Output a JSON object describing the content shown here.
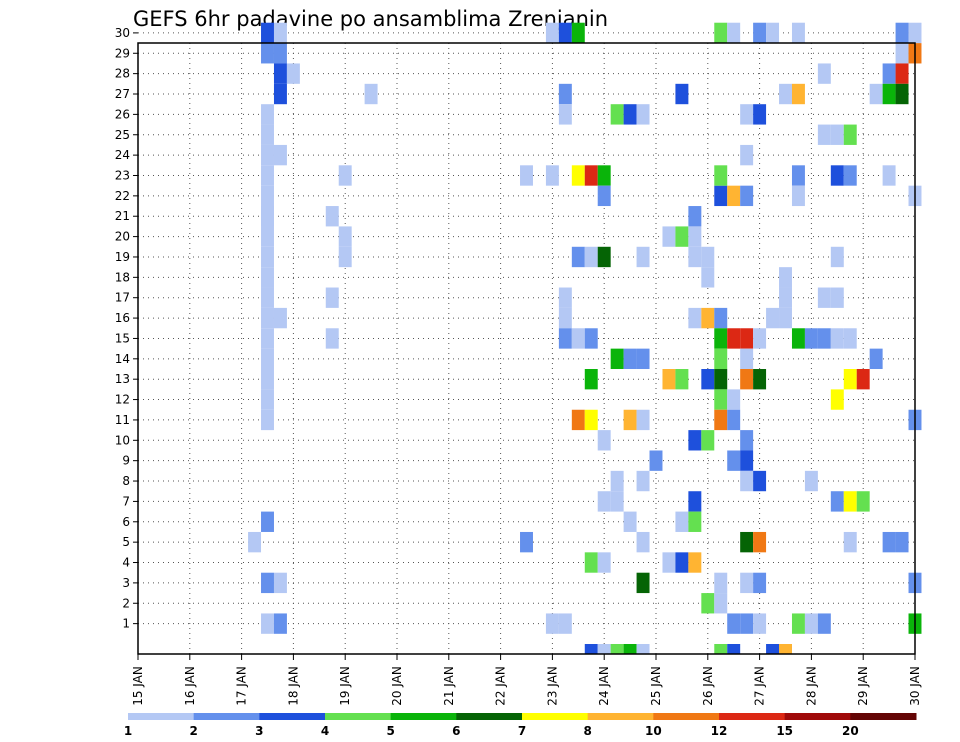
{
  "chart_data": {
    "type": "heatmap",
    "title": "GEFS 6hr padavine po ansamblima Zrenjanin",
    "x_tick_labels": [
      "15 JAN",
      "16 JAN",
      "17 JAN",
      "18 JAN",
      "19 JAN",
      "20 JAN",
      "21 JAN",
      "22 JAN",
      "23 JAN",
      "24 JAN",
      "25 JAN",
      "26 JAN",
      "27 JAN",
      "28 JAN",
      "29 JAN",
      "30 JAN"
    ],
    "y_tick_labels": [
      "1",
      "2",
      "3",
      "4",
      "5",
      "6",
      "7",
      "8",
      "9",
      "10",
      "11",
      "12",
      "13",
      "14",
      "15",
      "16",
      "17",
      "18",
      "19",
      "20",
      "21",
      "22",
      "23",
      "24",
      "25",
      "26",
      "27",
      "28",
      "29",
      "30"
    ],
    "x_range_days": [
      15,
      30
    ],
    "time_step_hours": 6,
    "ylim": [
      1,
      30
    ],
    "grid": "dotted",
    "legend_position": "bottom",
    "legend_labels": [
      "1",
      "2",
      "3",
      "4",
      "5",
      "6",
      "7",
      "8",
      "10",
      "12",
      "15",
      "20"
    ],
    "legend_colors": [
      "#b4c8f4",
      "#6490ec",
      "#1e50dc",
      "#64e050",
      "#0ab40a",
      "#056405",
      "#ffff00",
      "#ffb432",
      "#f07814",
      "#dc2814",
      "#a00a0a",
      "#640505"
    ],
    "cells_format": "[member, day_of_january, category_index]",
    "cells": [
      [
        30,
        17.5,
        2
      ],
      [
        30,
        17.75,
        0
      ],
      [
        29,
        17.5,
        1
      ],
      [
        29,
        17.75,
        1
      ],
      [
        28,
        17.75,
        2
      ],
      [
        28,
        18.0,
        0
      ],
      [
        27,
        17.75,
        2
      ],
      [
        26,
        17.5,
        0
      ],
      [
        25,
        17.5,
        0
      ],
      [
        24,
        17.5,
        0
      ],
      [
        24,
        17.75,
        0
      ],
      [
        23,
        17.5,
        0
      ],
      [
        22,
        17.5,
        0
      ],
      [
        21,
        17.5,
        0
      ],
      [
        20,
        17.5,
        0
      ],
      [
        19,
        17.5,
        0
      ],
      [
        18,
        17.5,
        0
      ],
      [
        17,
        17.5,
        0
      ],
      [
        16,
        17.5,
        0
      ],
      [
        15,
        17.5,
        0
      ],
      [
        14,
        17.5,
        0
      ],
      [
        13,
        17.5,
        0
      ],
      [
        12,
        17.5,
        0
      ],
      [
        11,
        17.5,
        0
      ],
      [
        21,
        17.5,
        0
      ],
      [
        16,
        17.75,
        0
      ],
      [
        6,
        17.5,
        1
      ],
      [
        5,
        17.25,
        0
      ],
      [
        3,
        17.5,
        1
      ],
      [
        3,
        17.75,
        0
      ],
      [
        1,
        17.5,
        0
      ],
      [
        1,
        17.75,
        1
      ],
      [
        27,
        19.5,
        0
      ],
      [
        23,
        19.0,
        0
      ],
      [
        20,
        19.0,
        0
      ],
      [
        19,
        19.0,
        0
      ],
      [
        17,
        18.75,
        0
      ],
      [
        15,
        18.75,
        0
      ],
      [
        21,
        18.75,
        0
      ],
      [
        30,
        23.0,
        0
      ],
      [
        30,
        23.25,
        2
      ],
      [
        30,
        23.5,
        4
      ],
      [
        27,
        23.25,
        1
      ],
      [
        26,
        23.25,
        0
      ],
      [
        23,
        22.5,
        0
      ],
      [
        23,
        23.0,
        0
      ],
      [
        23,
        23.5,
        6
      ],
      [
        23,
        23.75,
        9
      ],
      [
        23,
        24.0,
        4
      ],
      [
        22,
        24.0,
        1
      ],
      [
        19,
        23.5,
        1
      ],
      [
        19,
        23.75,
        0
      ],
      [
        19,
        24.0,
        5
      ],
      [
        17,
        23.25,
        0
      ],
      [
        16,
        23.25,
        0
      ],
      [
        15,
        23.25,
        1
      ],
      [
        15,
        23.5,
        0
      ],
      [
        15,
        23.75,
        1
      ],
      [
        14,
        24.25,
        4
      ],
      [
        14,
        24.5,
        1
      ],
      [
        14,
        24.75,
        1
      ],
      [
        13,
        23.75,
        4
      ],
      [
        11,
        23.5,
        8
      ],
      [
        11,
        23.75,
        6
      ],
      [
        11,
        24.5,
        7
      ],
      [
        11,
        24.75,
        0
      ],
      [
        10,
        24.0,
        0
      ],
      [
        8,
        24.25,
        0
      ],
      [
        8,
        24.75,
        0
      ],
      [
        7,
        24.0,
        0
      ],
      [
        7,
        24.25,
        0
      ],
      [
        6,
        24.5,
        0
      ],
      [
        5,
        22.5,
        1
      ],
      [
        5,
        24.75,
        0
      ],
      [
        4,
        23.75,
        3
      ],
      [
        4,
        24.0,
        0
      ],
      [
        3,
        24.75,
        5
      ],
      [
        1,
        23.0,
        0
      ],
      [
        1,
        23.25,
        0
      ],
      [
        0,
        23.75,
        2
      ],
      [
        0,
        24.0,
        0
      ],
      [
        0,
        24.25,
        3
      ],
      [
        0,
        24.5,
        4
      ],
      [
        0,
        24.75,
        0
      ],
      [
        26,
        24.25,
        3
      ],
      [
        26,
        24.5,
        2
      ],
      [
        26,
        24.75,
        0
      ],
      [
        19,
        24.75,
        0
      ],
      [
        9,
        25.0,
        1
      ],
      [
        27,
        25.5,
        2
      ],
      [
        22,
        26.25,
        2
      ],
      [
        22,
        26.5,
        7
      ],
      [
        22,
        26.75,
        1
      ],
      [
        21,
        25.75,
        1
      ],
      [
        20,
        25.25,
        0
      ],
      [
        20,
        25.5,
        3
      ],
      [
        20,
        25.75,
        0
      ],
      [
        19,
        25.75,
        0
      ],
      [
        19,
        26.0,
        0
      ],
      [
        18,
        26.0,
        0
      ],
      [
        16,
        25.75,
        0
      ],
      [
        16,
        26.0,
        7
      ],
      [
        16,
        26.25,
        1
      ],
      [
        15,
        26.25,
        4
      ],
      [
        15,
        26.5,
        9
      ],
      [
        15,
        26.75,
        9
      ],
      [
        15,
        27.0,
        0
      ],
      [
        14,
        26.25,
        3
      ],
      [
        14,
        26.75,
        0
      ],
      [
        13,
        25.25,
        7
      ],
      [
        13,
        25.5,
        3
      ],
      [
        13,
        26.0,
        2
      ],
      [
        13,
        26.25,
        5
      ],
      [
        13,
        26.75,
        8
      ],
      [
        13,
        27.0,
        5
      ],
      [
        12,
        26.25,
        3
      ],
      [
        12,
        26.5,
        0
      ],
      [
        11,
        26.25,
        8
      ],
      [
        11,
        26.5,
        1
      ],
      [
        10,
        25.75,
        2
      ],
      [
        10,
        26.0,
        3
      ],
      [
        10,
        26.75,
        1
      ],
      [
        9,
        26.5,
        1
      ],
      [
        9,
        26.75,
        2
      ],
      [
        8,
        26.75,
        0
      ],
      [
        8,
        27.0,
        2
      ],
      [
        7,
        25.75,
        2
      ],
      [
        6,
        25.5,
        0
      ],
      [
        6,
        25.75,
        3
      ],
      [
        5,
        26.75,
        5
      ],
      [
        5,
        27.0,
        8
      ],
      [
        4,
        25.25,
        0
      ],
      [
        4,
        25.5,
        2
      ],
      [
        4,
        25.75,
        7
      ],
      [
        3,
        26.25,
        0
      ],
      [
        3,
        26.75,
        0
      ],
      [
        3,
        27.0,
        1
      ],
      [
        2,
        26.0,
        3
      ],
      [
        2,
        26.25,
        0
      ],
      [
        1,
        26.5,
        1
      ],
      [
        1,
        26.75,
        1
      ],
      [
        1,
        27.0,
        0
      ],
      [
        0,
        26.25,
        3
      ],
      [
        0,
        26.5,
        2
      ],
      [
        26,
        26.75,
        0
      ],
      [
        26,
        27.0,
        2
      ],
      [
        24,
        26.75,
        0
      ],
      [
        23,
        26.25,
        3
      ],
      [
        30,
        26.25,
        3
      ],
      [
        30,
        26.5,
        0
      ],
      [
        30,
        27.0,
        1
      ],
      [
        30,
        27.25,
        0
      ],
      [
        30,
        27.75,
        0
      ],
      [
        28,
        28.25,
        0
      ],
      [
        27,
        27.5,
        0
      ],
      [
        27,
        27.75,
        7
      ],
      [
        23,
        27.75,
        1
      ],
      [
        22,
        27.75,
        0
      ],
      [
        18,
        27.5,
        0
      ],
      [
        17,
        27.5,
        0
      ],
      [
        17,
        28.25,
        0
      ],
      [
        17,
        28.5,
        0
      ],
      [
        16,
        27.25,
        0
      ],
      [
        16,
        27.5,
        0
      ],
      [
        15,
        27.75,
        4
      ],
      [
        15,
        28.0,
        1
      ],
      [
        15,
        28.25,
        1
      ],
      [
        15,
        28.5,
        0
      ],
      [
        15,
        28.75,
        0
      ],
      [
        8,
        28.0,
        0
      ],
      [
        7,
        28.5,
        1
      ],
      [
        7,
        28.75,
        6
      ],
      [
        7,
        29.0,
        3
      ],
      [
        5,
        28.75,
        0
      ],
      [
        1,
        27.75,
        3
      ],
      [
        1,
        28.0,
        0
      ],
      [
        1,
        28.25,
        1
      ],
      [
        0,
        27.25,
        2
      ],
      [
        0,
        27.5,
        2
      ],
      [
        0,
        27.5,
        7
      ],
      [
        25,
        28.25,
        0
      ],
      [
        25,
        28.5,
        0
      ],
      [
        25,
        28.75,
        3
      ],
      [
        23,
        28.5,
        2
      ],
      [
        23,
        28.75,
        1
      ],
      [
        19,
        28.5,
        0
      ],
      [
        12,
        28.5,
        6
      ],
      [
        14,
        29.25,
        1
      ],
      [
        29,
        29.75,
        0
      ],
      [
        29,
        30.0,
        8
      ],
      [
        28,
        29.5,
        1
      ],
      [
        28,
        29.75,
        9
      ],
      [
        27,
        29.25,
        0
      ],
      [
        27,
        29.5,
        4
      ],
      [
        27,
        29.75,
        5
      ],
      [
        22,
        30.0,
        0
      ],
      [
        23,
        29.5,
        0
      ],
      [
        13,
        28.75,
        6
      ],
      [
        13,
        29.0,
        9
      ],
      [
        11,
        30.0,
        1
      ],
      [
        5,
        29.5,
        1
      ],
      [
        5,
        29.75,
        1
      ],
      [
        3,
        30.0,
        1
      ],
      [
        1,
        30.0,
        4
      ],
      [
        30,
        29.75,
        1
      ],
      [
        30,
        30.0,
        0
      ]
    ]
  }
}
